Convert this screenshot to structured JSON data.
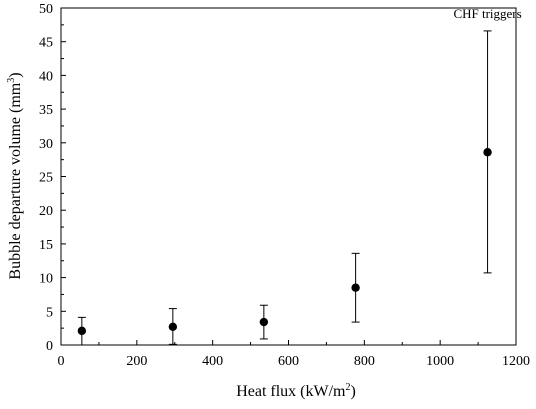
{
  "chart_data": {
    "type": "scatter",
    "xlabel_main": "Heat flux (kW/m",
    "xlabel_sup": "2",
    "xlabel_end": ")",
    "ylabel_main": "Bubble departure volume (mm",
    "ylabel_sup": "3",
    "ylabel_end": ")",
    "xlim": [
      0,
      1200
    ],
    "ylim": [
      0,
      50
    ],
    "x_ticks": [
      0,
      200,
      400,
      600,
      800,
      1000,
      1200
    ],
    "y_ticks": [
      0,
      5,
      10,
      15,
      20,
      25,
      30,
      35,
      40,
      45,
      50
    ],
    "x": [
      55,
      295,
      535,
      777,
      1125
    ],
    "y": [
      2.1,
      2.7,
      3.4,
      8.5,
      28.6
    ],
    "error_low": [
      0.0,
      0.1,
      0.9,
      3.4,
      10.7
    ],
    "error_high": [
      4.1,
      5.4,
      5.9,
      13.6,
      46.6
    ],
    "grid": false,
    "annotations": [
      {
        "text": "CHF triggers",
        "x": 1125,
        "y": 48.5
      }
    ]
  }
}
